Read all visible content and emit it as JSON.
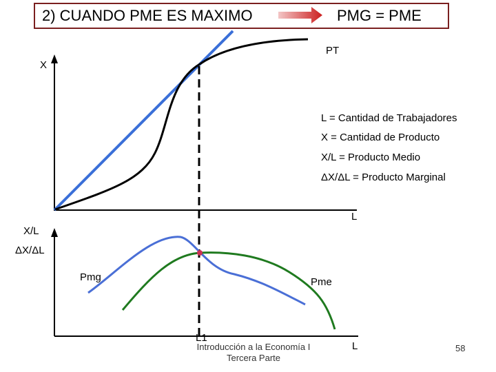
{
  "title": {
    "left": "2) CUANDO PME ES MAXIMO",
    "right": "PMG = PME"
  },
  "colors": {
    "title_border": "#7a1f1f",
    "arrow": "#cc1f1f",
    "tangent_line": "#3a6fd8",
    "pt_curve": "#000000",
    "pmg_curve": "#4a6fd6",
    "pme_curve": "#1f7a1f",
    "intersection_point": "#cc3355"
  },
  "top_graph": {
    "y_label": "X",
    "x_label": "L",
    "curve_label": "PT"
  },
  "legend": [
    "L = Cantidad de Trabajadores",
    "X = Cantidad de Producto",
    "X/L = Producto Medio",
    "ΔX/ΔL = Producto Marginal"
  ],
  "bottom_graph": {
    "y_label_1": "X/L",
    "y_label_2": "ΔX/ΔL",
    "x_label": "L",
    "l_marker": "L1",
    "pmg_label": "Pmg",
    "pme_label": "Pme"
  },
  "footer": {
    "line1": "Introducción a la Economía I",
    "line2": "Tercera Parte"
  },
  "page_number": "58"
}
